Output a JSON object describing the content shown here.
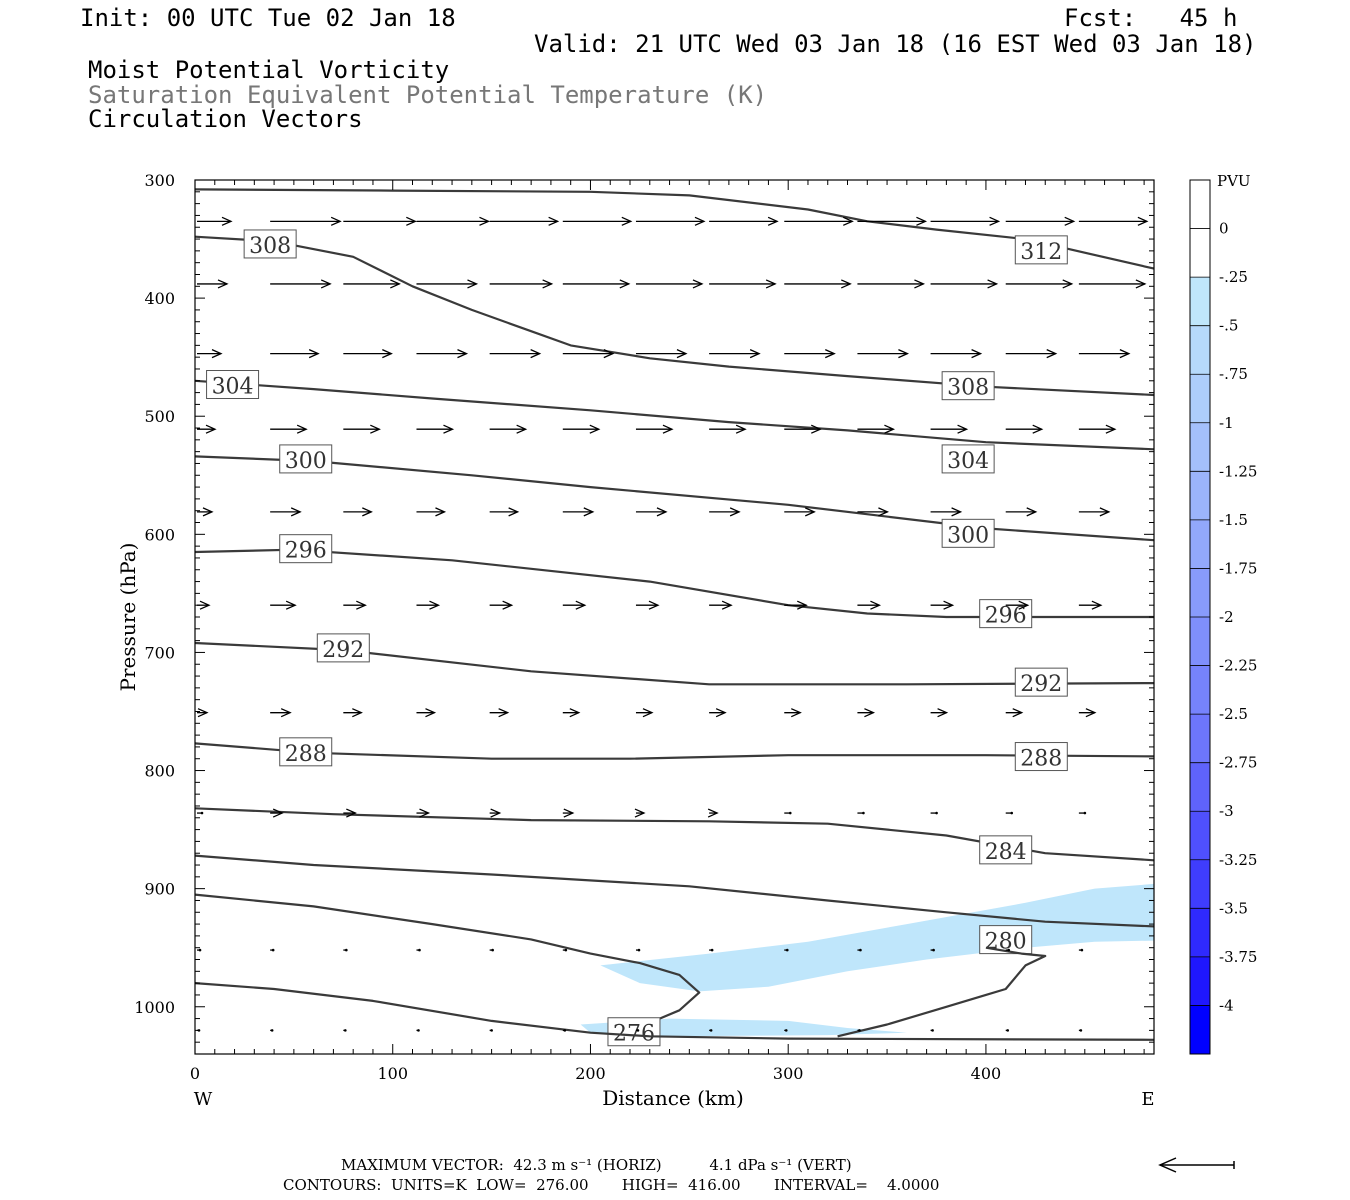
{
  "header": {
    "init": "Init: 00 UTC Tue 02 Jan 18",
    "fcst": "Fcst:   45 h",
    "valid": "Valid: 21 UTC Wed 03 Jan 18 (16 EST Wed 03 Jan 18)",
    "field1": "Moist Potential Vorticity",
    "field2": "Saturation Equivalent Potential Temperature (K)",
    "field3": "Circulation Vectors"
  },
  "footer": {
    "max_vector": "MAXIMUM VECTOR:  42.3 m s⁻¹ (HORIZ)          4.1 dPa s⁻¹ (VERT)",
    "contours": "CONTOURS:  UNITS=K  LOW=  276.00       HIGH=  416.00       INTERVAL=    4.0000"
  },
  "colors": {
    "contour": "#3a3a3a",
    "vector": "#000000",
    "pv_light": "#bfe6fb",
    "pv_dark": "#0000ff"
  },
  "chart_data": {
    "type": "cross-section",
    "xlabel": "Distance (km)",
    "ylabel": "Pressure (hPa)",
    "x_ticks": [
      0,
      100,
      200,
      300,
      400
    ],
    "y_ticks": [
      300,
      400,
      500,
      600,
      700,
      800,
      900,
      1000
    ],
    "xlim": [
      0,
      485
    ],
    "ylim": [
      300,
      1040
    ],
    "left_label": "W",
    "right_label": "E",
    "colorbar": {
      "title": "PVU",
      "labels": [
        "0",
        "-.25",
        "-.5",
        "-.75",
        "-1",
        "-1.25",
        "-1.5",
        "-1.75",
        "-2",
        "-2.25",
        "-2.5",
        "-2.75",
        "-3",
        "-3.25",
        "-3.5",
        "-3.75",
        "-4"
      ],
      "colors": [
        "#ffffff",
        "#ffffff",
        "#bfe6fb",
        "#b6d9fb",
        "#adcdfb",
        "#a4c0fb",
        "#9bb4fb",
        "#92a8fb",
        "#889bfb",
        "#7f8ffc",
        "#7683fc",
        "#6d76fc",
        "#5f63fc",
        "#4f50fd",
        "#3f3dfd",
        "#2f2afd",
        "#1f17fe",
        "#0000ff"
      ]
    },
    "contours": [
      {
        "value": 312,
        "label": "312",
        "points": [
          [
            0,
            308
          ],
          [
            100,
            309
          ],
          [
            200,
            310
          ],
          [
            250,
            313
          ],
          [
            310,
            325
          ],
          [
            340,
            335
          ],
          [
            375,
            342
          ],
          [
            420,
            350
          ],
          [
            485,
            375
          ]
        ],
        "labels_at": [
          [
            428,
            360
          ]
        ]
      },
      {
        "value": 308,
        "label": "308",
        "points": [
          [
            0,
            348
          ],
          [
            40,
            352
          ],
          [
            80,
            365
          ],
          [
            110,
            390
          ],
          [
            140,
            410
          ],
          [
            170,
            428
          ],
          [
            190,
            440
          ],
          [
            230,
            451
          ],
          [
            270,
            458
          ],
          [
            330,
            466
          ],
          [
            400,
            475
          ],
          [
            485,
            482
          ]
        ],
        "labels_at": [
          [
            38,
            355
          ],
          [
            391,
            475
          ]
        ]
      },
      {
        "value": 304,
        "label": "304",
        "points": [
          [
            0,
            470
          ],
          [
            60,
            477
          ],
          [
            120,
            485
          ],
          [
            200,
            495
          ],
          [
            270,
            505
          ],
          [
            330,
            512
          ],
          [
            400,
            522
          ],
          [
            485,
            528
          ]
        ],
        "labels_at": [
          [
            19,
            474
          ],
          [
            391,
            537
          ]
        ]
      },
      {
        "value": 300,
        "label": "300",
        "points": [
          [
            0,
            534
          ],
          [
            60,
            538
          ],
          [
            140,
            550
          ],
          [
            200,
            560
          ],
          [
            300,
            575
          ],
          [
            400,
            595
          ],
          [
            485,
            605
          ]
        ],
        "labels_at": [
          [
            56,
            537
          ],
          [
            391,
            600
          ]
        ]
      },
      {
        "value": 296,
        "label": "296",
        "points": [
          [
            0,
            615
          ],
          [
            50,
            613
          ],
          [
            130,
            622
          ],
          [
            230,
            640
          ],
          [
            300,
            660
          ],
          [
            340,
            667
          ],
          [
            380,
            670
          ],
          [
            485,
            670
          ]
        ],
        "labels_at": [
          [
            56,
            613
          ],
          [
            410,
            668
          ]
        ]
      },
      {
        "value": 292,
        "label": "292",
        "points": [
          [
            0,
            692
          ],
          [
            75,
            698
          ],
          [
            170,
            716
          ],
          [
            260,
            727
          ],
          [
            360,
            727
          ],
          [
            485,
            726
          ]
        ],
        "labels_at": [
          [
            75,
            697
          ],
          [
            428,
            726
          ]
        ]
      },
      {
        "value": 288,
        "label": "288",
        "points": [
          [
            0,
            777
          ],
          [
            60,
            785
          ],
          [
            150,
            790
          ],
          [
            220,
            790
          ],
          [
            300,
            787
          ],
          [
            400,
            787
          ],
          [
            485,
            788
          ]
        ],
        "labels_at": [
          [
            56,
            785
          ],
          [
            428,
            789
          ]
        ]
      },
      {
        "value": 284,
        "label": "284",
        "points": [
          [
            0,
            832
          ],
          [
            70,
            837
          ],
          [
            170,
            842
          ],
          [
            260,
            843
          ],
          [
            320,
            845
          ],
          [
            380,
            855
          ],
          [
            430,
            870
          ],
          [
            485,
            876
          ]
        ],
        "labels_at": [
          [
            410,
            868
          ]
        ]
      },
      {
        "value": 280,
        "label": "280",
        "points": [
          [
            0,
            872
          ],
          [
            60,
            880
          ],
          [
            150,
            888
          ],
          [
            250,
            898
          ],
          [
            320,
            910
          ],
          [
            380,
            920
          ],
          [
            430,
            928
          ],
          [
            485,
            932
          ]
        ],
        "labels_at": [
          [
            410,
            944
          ]
        ]
      },
      {
        "value": 276,
        "label": "276",
        "points": [
          [
            0,
            905
          ],
          [
            60,
            915
          ],
          [
            120,
            930
          ],
          [
            170,
            943
          ],
          [
            200,
            955
          ],
          [
            225,
            963
          ],
          [
            245,
            973
          ],
          [
            255,
            988
          ],
          [
            245,
            1003
          ],
          [
            235,
            1010
          ]
        ],
        "labels_at": [
          [
            222,
            1022
          ]
        ]
      },
      {
        "value": 276,
        "label": "",
        "points": [
          [
            0,
            980
          ],
          [
            40,
            985
          ],
          [
            90,
            995
          ],
          [
            150,
            1012
          ],
          [
            200,
            1022
          ],
          [
            230,
            1025
          ],
          [
            300,
            1027
          ],
          [
            485,
            1028
          ]
        ],
        "labels_at": []
      },
      {
        "value": 280,
        "label": "",
        "points": [
          [
            325,
            1025
          ],
          [
            350,
            1015
          ],
          [
            380,
            1000
          ],
          [
            400,
            990
          ],
          [
            410,
            985
          ],
          [
            420,
            965
          ],
          [
            430,
            957
          ],
          [
            418,
            955
          ],
          [
            400,
            950
          ]
        ],
        "labels_at": []
      }
    ],
    "pv_regions": [
      {
        "pv": -0.25,
        "points": [
          [
            205,
            965
          ],
          [
            260,
            955
          ],
          [
            310,
            945
          ],
          [
            360,
            930
          ],
          [
            420,
            912
          ],
          [
            455,
            900
          ],
          [
            485,
            896
          ],
          [
            485,
            944
          ],
          [
            455,
            945
          ],
          [
            420,
            950
          ],
          [
            370,
            960
          ],
          [
            330,
            970
          ],
          [
            290,
            983
          ],
          [
            255,
            987
          ],
          [
            225,
            980
          ]
        ]
      },
      {
        "pv": -0.25,
        "points": [
          [
            195,
            1015
          ],
          [
            240,
            1010
          ],
          [
            300,
            1012
          ],
          [
            330,
            1018
          ],
          [
            360,
            1022
          ],
          [
            320,
            1024
          ],
          [
            240,
            1025
          ],
          [
            200,
            1022
          ]
        ]
      }
    ],
    "vector_rows": [
      {
        "p": 335,
        "len_px": [
          34,
          70,
          72,
          72,
          68,
          68,
          68,
          68,
          68,
          68,
          68,
          68,
          68
        ]
      },
      {
        "p": 388,
        "len_px": [
          30,
          60,
          56,
          60,
          62,
          66,
          66,
          66,
          66,
          66,
          66,
          66,
          66
        ]
      },
      {
        "p": 447,
        "len_px": [
          24,
          48,
          48,
          50,
          50,
          50,
          50,
          50,
          50,
          50,
          50,
          50,
          50
        ]
      },
      {
        "p": 511,
        "len_px": [
          18,
          36,
          36,
          36,
          36,
          36,
          36,
          36,
          36,
          36,
          36,
          36,
          36
        ]
      },
      {
        "p": 581,
        "len_px": [
          15,
          30,
          28,
          28,
          28,
          30,
          30,
          30,
          30,
          30,
          30,
          30,
          30
        ]
      },
      {
        "p": 660,
        "len_px": [
          12,
          25,
          22,
          22,
          22,
          22,
          22,
          22,
          22,
          22,
          22,
          22,
          22
        ]
      },
      {
        "p": 751,
        "len_px": [
          10,
          20,
          18,
          18,
          18,
          16,
          16,
          16,
          16,
          16,
          16,
          16,
          16
        ]
      },
      {
        "p": 836,
        "len_px": [
          5,
          12,
          12,
          12,
          10,
          10,
          8,
          8,
          6,
          6,
          6,
          6,
          6
        ]
      },
      {
        "p": 952,
        "len_px": [
          3,
          3,
          3,
          3,
          3,
          3,
          3,
          3,
          3,
          3,
          3,
          3,
          3
        ]
      },
      {
        "p": 1020,
        "len_px": [
          2,
          2,
          2,
          2,
          2,
          2,
          2,
          2,
          2,
          2,
          2,
          2,
          2
        ]
      }
    ],
    "vector_x_km": [
      0,
      37,
      74,
      111,
      148,
      185,
      222,
      259,
      297,
      334,
      371,
      409,
      446
    ]
  }
}
